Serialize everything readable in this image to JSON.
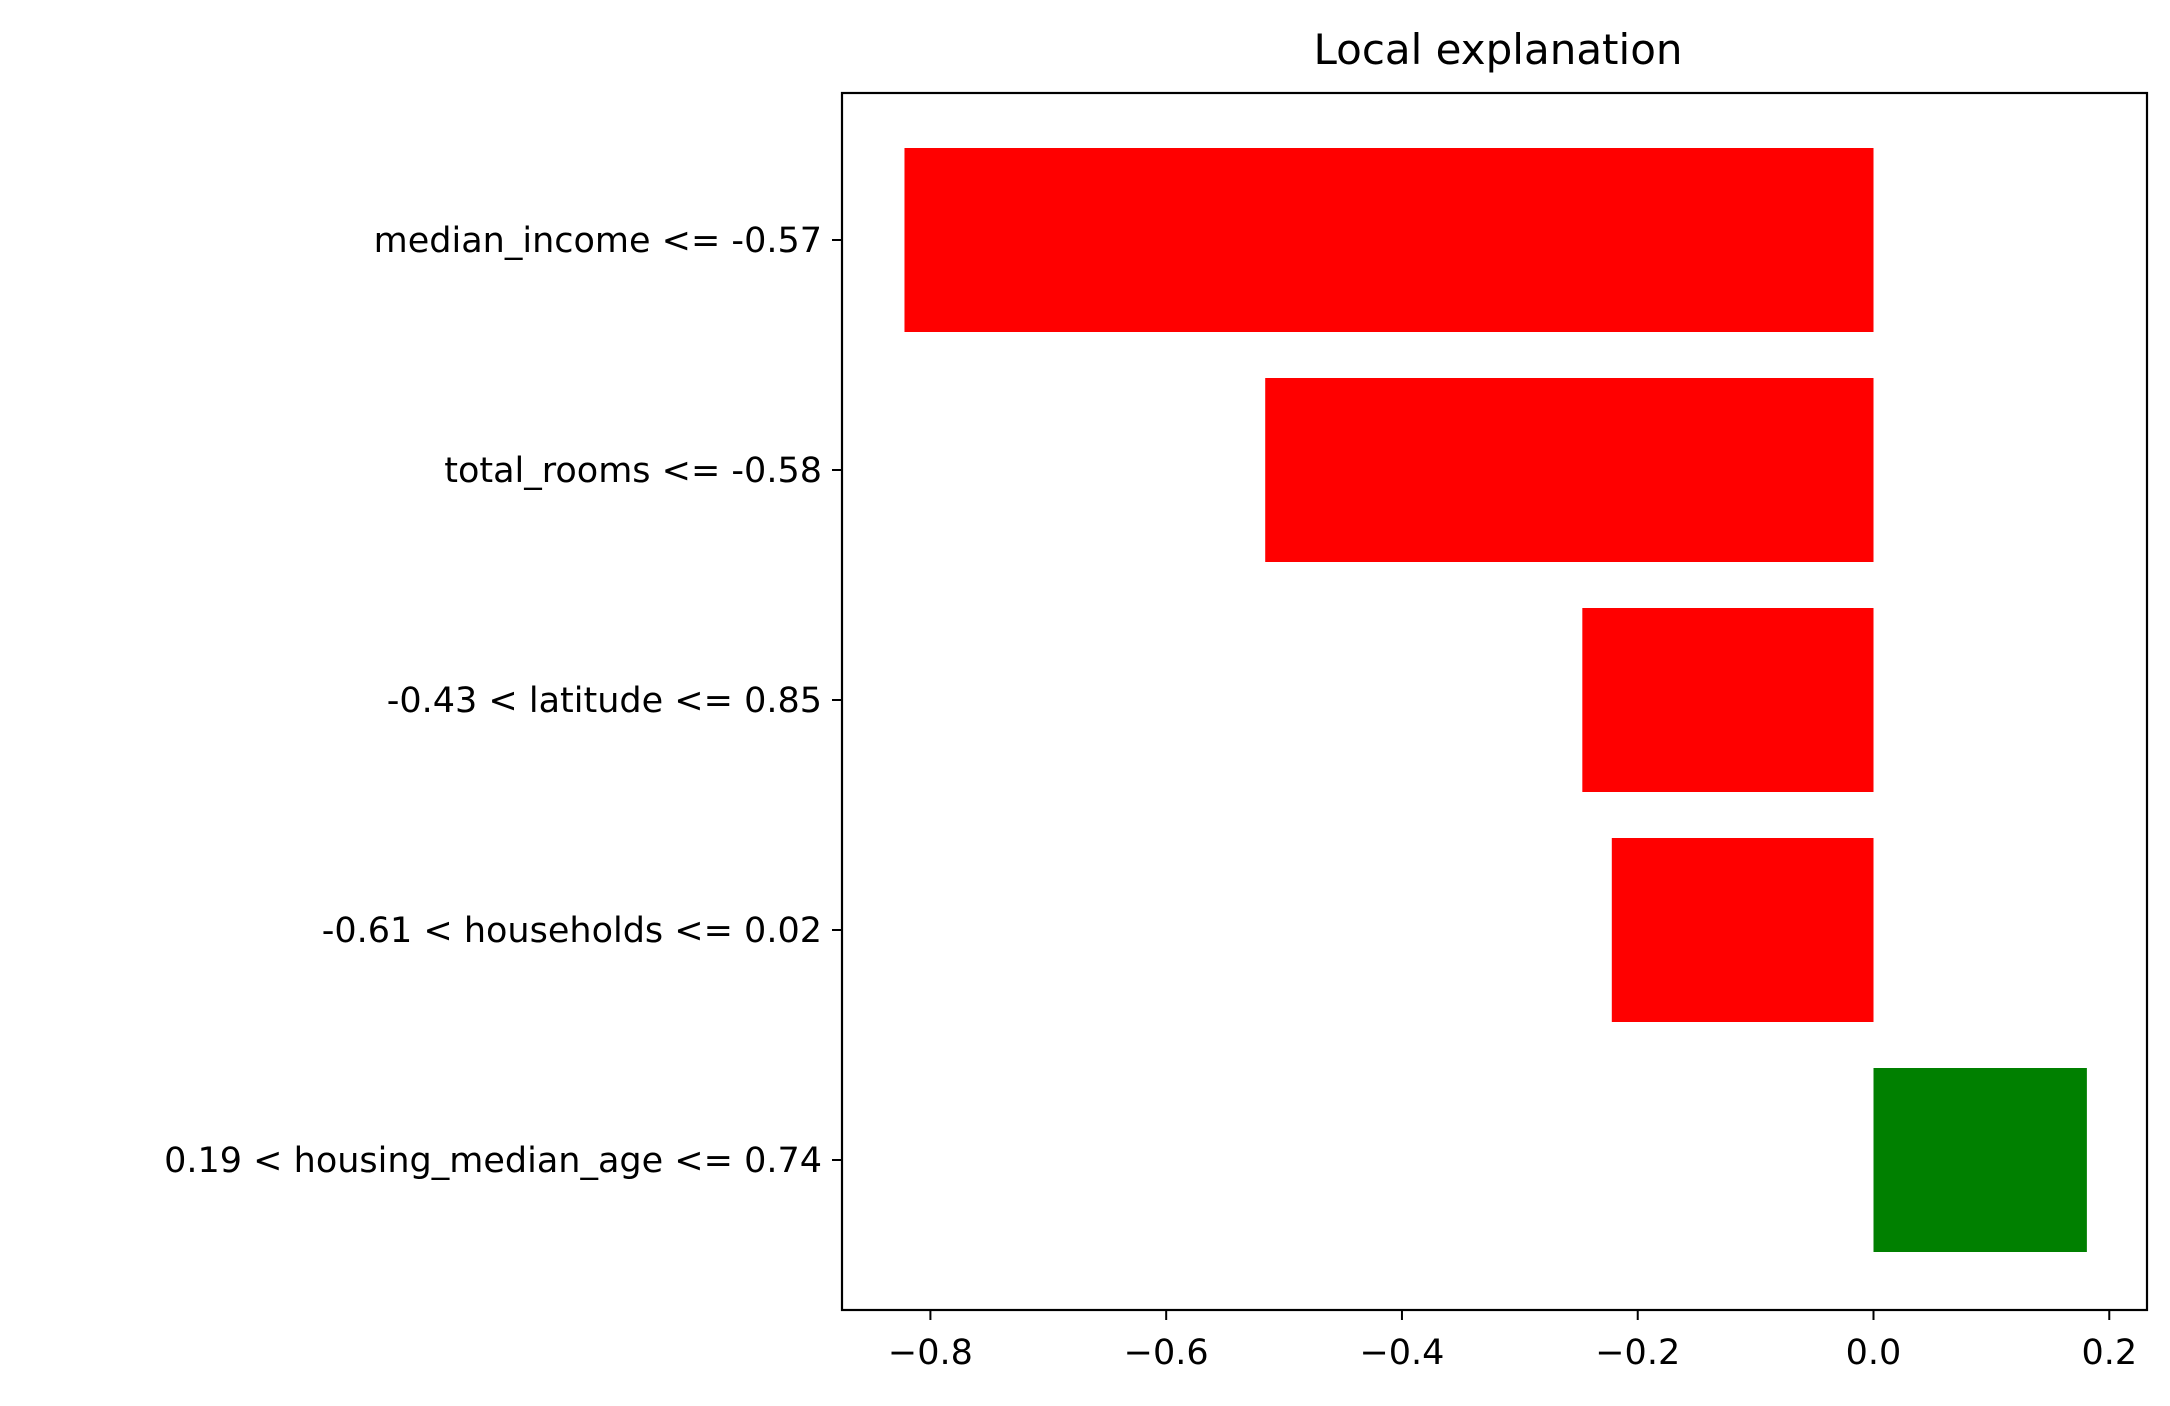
{
  "chart_data": {
    "type": "bar",
    "orientation": "horizontal",
    "title": "Local explanation",
    "xlabel": "",
    "ylabel": "",
    "xlim": [
      -0.875,
      0.232
    ],
    "categories": [
      "median_income <= -0.57",
      "total_rooms <= -0.58",
      "-0.43 < latitude <= 0.85",
      "-0.61 < households <= 0.02",
      "0.19 < housing_median_age <= 0.74"
    ],
    "values": [
      -0.822,
      -0.516,
      -0.247,
      -0.222,
      0.181
    ],
    "colors": {
      "negative": "#ff0000",
      "positive": "#008000"
    },
    "xticks": [
      {
        "value": -0.8,
        "label": "−0.8"
      },
      {
        "value": -0.6,
        "label": "−0.6"
      },
      {
        "value": -0.4,
        "label": "−0.4"
      },
      {
        "value": -0.2,
        "label": "−0.2"
      },
      {
        "value": 0.0,
        "label": "0.0"
      },
      {
        "value": 0.2,
        "label": "0.2"
      }
    ],
    "grid": false,
    "legend": "none"
  }
}
